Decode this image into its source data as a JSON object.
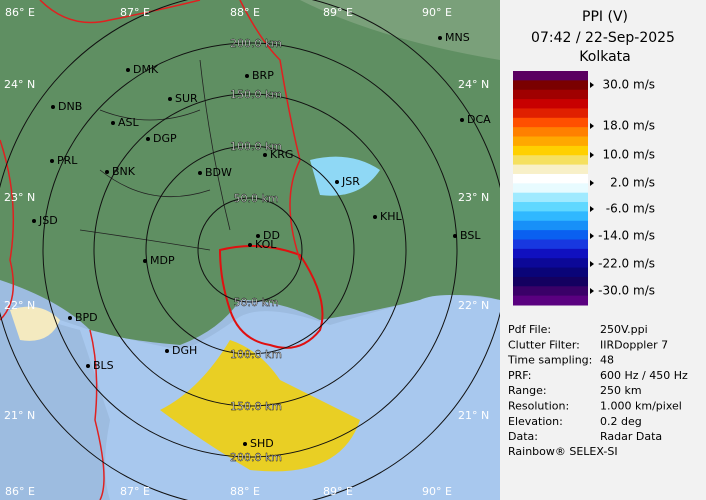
{
  "panel": {
    "title": "PPI (V)",
    "datetime": "07:42 / 22-Sep-2025",
    "site": "Kolkata",
    "legend": [
      "30.0 m/s",
      "18.0 m/s",
      "10.0 m/s",
      "2.0 m/s",
      "-6.0 m/s",
      "-14.0 m/s",
      "-22.0 m/s",
      "-30.0 m/s"
    ],
    "info": [
      [
        "Pdf File:",
        "250V.ppi"
      ],
      [
        "Clutter Filter:",
        "IIRDoppler 7"
      ],
      [
        "Time sampling:",
        "48"
      ],
      [
        "PRF:",
        "600 Hz / 450 Hz"
      ],
      [
        "Range:",
        "250 km"
      ],
      [
        "Resolution:",
        "1.000 km/pixel"
      ],
      [
        "Elevation:",
        "0.2 deg"
      ],
      [
        "Data:",
        "Radar Data"
      ]
    ],
    "footer": "Rainbow® SELEX-SI"
  },
  "map": {
    "lon_labels": [
      "86° E",
      "87° E",
      "88° E",
      "89° E",
      "90° E"
    ],
    "lat_labels": [
      "24° N",
      "23° N",
      "22° N",
      "21° N"
    ],
    "range_labels": [
      "50.0 km",
      "100.0 km",
      "150.0 km",
      "200.0 km"
    ],
    "places": [
      "MNS",
      "DMK",
      "BRP",
      "SUR",
      "DNB",
      "ASL",
      "DCA",
      "DGP",
      "KRG",
      "PRL",
      "BNK",
      "BDW",
      "JSR",
      "KHL",
      "JSD",
      "DD",
      "KOL",
      "BSL",
      "MDP",
      "BPD",
      "DGH",
      "BLS",
      "SHD"
    ]
  }
}
